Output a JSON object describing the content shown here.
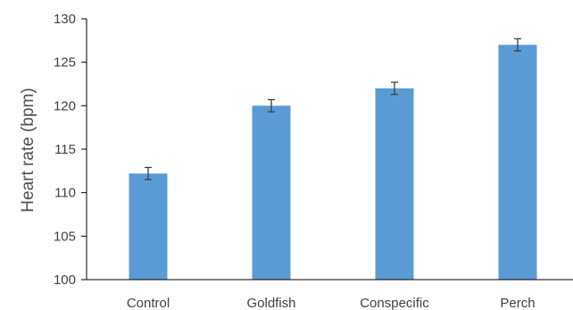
{
  "chart_data": {
    "type": "bar",
    "title": "",
    "xlabel": "",
    "ylabel": "Heart rate (bpm)",
    "categories": [
      "Control",
      "Goldfish",
      "Conspecific",
      "Perch"
    ],
    "values": [
      112.2,
      120.0,
      122.0,
      127.0
    ],
    "error": [
      0.7,
      0.7,
      0.7,
      0.7
    ],
    "ylim": [
      100,
      130
    ],
    "yticks": [
      "100",
      "105",
      "110",
      "115",
      "120",
      "125",
      "130"
    ],
    "grid": false,
    "legend": "none",
    "colors": {
      "bar": "#5b9bd5",
      "error_bar": "#404040",
      "axis": "#000000",
      "text": "#404040"
    }
  }
}
